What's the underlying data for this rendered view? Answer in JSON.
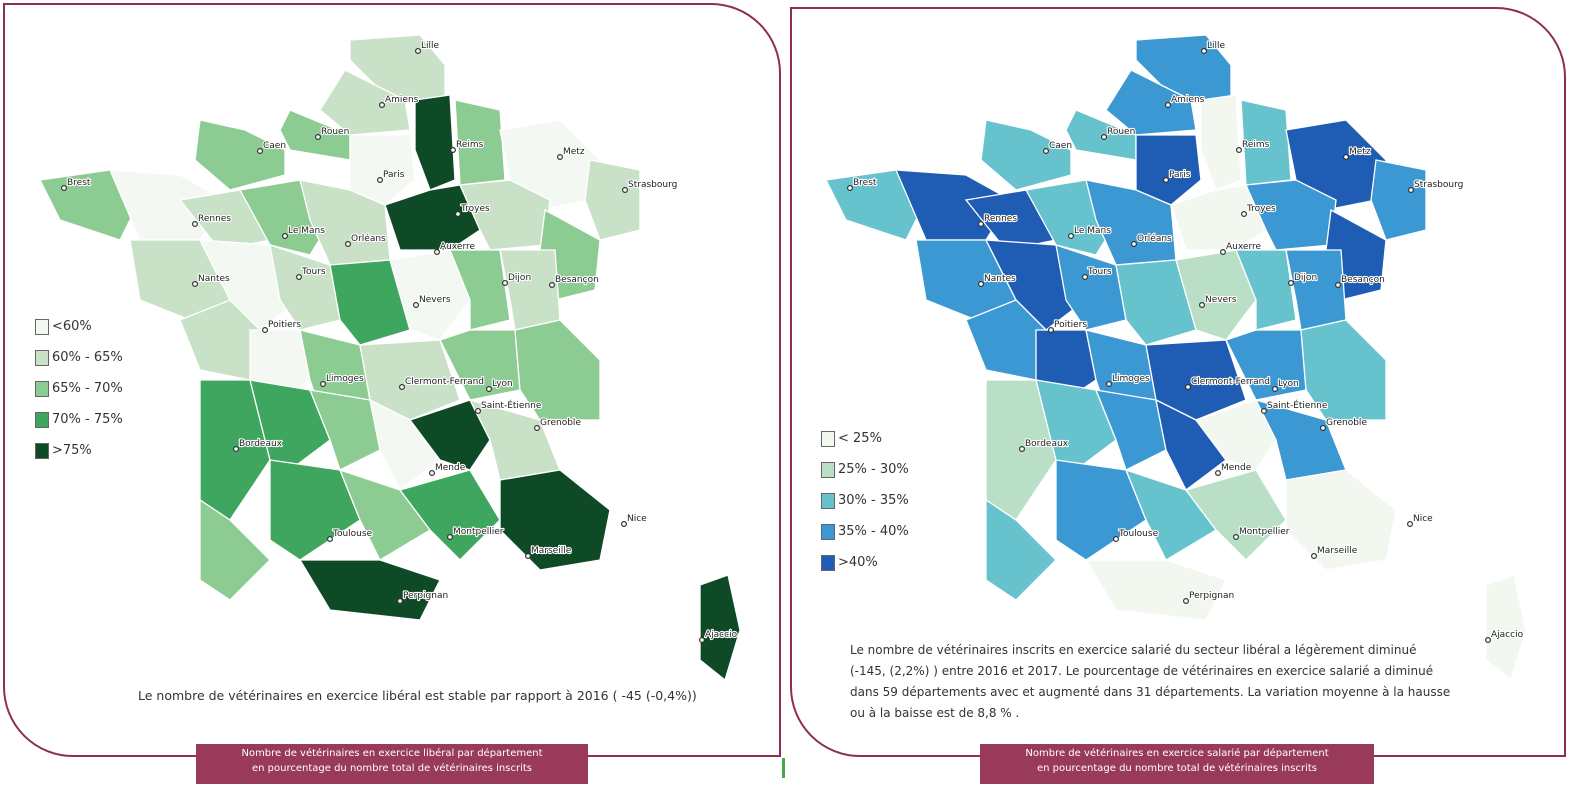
{
  "maps": [
    {
      "id": "liberal",
      "legend": [
        {
          "label": "<60%",
          "color": "#f4f8f3"
        },
        {
          "label": "60% - 65%",
          "color": "#c9e2c7"
        },
        {
          "label": "65% - 70%",
          "color": "#8ccb92"
        },
        {
          "label": "70% - 75%",
          "color": "#3ea65f"
        },
        {
          "label": ">75%",
          "color": "#0f4a27"
        }
      ],
      "caption": "Le nombre de vétérinaires en exercice libéral est stable par rapport à 2016 ( -45 (-0,4%))",
      "footer_line1": "Nombre de vétérinaires en exercice libéral par département",
      "footer_line2": "en pourcentage du nombre total de vétérinaires inscrits"
    },
    {
      "id": "salarie",
      "legend": [
        {
          "label": "< 25%",
          "color": "#f2f7ef"
        },
        {
          "label": "25% - 30%",
          "color": "#b9e0c6"
        },
        {
          "label": "30% - 35%",
          "color": "#66c2cc"
        },
        {
          "label": "35% - 40%",
          "color": "#3b98d2"
        },
        {
          "label": ">40%",
          "color": "#1f5cb4"
        }
      ],
      "caption_line1": "Le nombre   de vétérinaires inscrits en exercice salarié du secteur libéral a légèrement diminué",
      "caption_line2": "(-145, (2,2%) )  entre 2016 et 2017. Le pourcentage de vétérinaires en exercice salarié a diminué",
      "caption_line3": "dans 59 départements avec et augmenté dans 31 départements. La variation moyenne à la hausse",
      "caption_line4": "ou à la baisse est de 8,8 % .",
      "footer_line1": "Nombre de vétérinaires en exercice salarié par département",
      "footer_line2": "en pourcentage du nombre total de vétérinaires inscrits"
    }
  ],
  "cities": [
    "Lille",
    "Amiens",
    "Rouen",
    "Caen",
    "Reims",
    "Metz",
    "Brest",
    "Paris",
    "Strasbourg",
    "Troyes",
    "Rennes",
    "Le Mans",
    "Orléans",
    "Auxerre",
    "Nantes",
    "Tours",
    "Dijon",
    "Besançon",
    "Nevers",
    "Poitiers",
    "Limoges",
    "Clermont-Ferrand",
    "Lyon",
    "Saint-Étienne",
    "Grenoble",
    "Bordeaux",
    "Mende",
    "Nice",
    "Toulouse",
    "Montpellier",
    "Marseille",
    "Perpignan",
    "Ajaccio"
  ]
}
